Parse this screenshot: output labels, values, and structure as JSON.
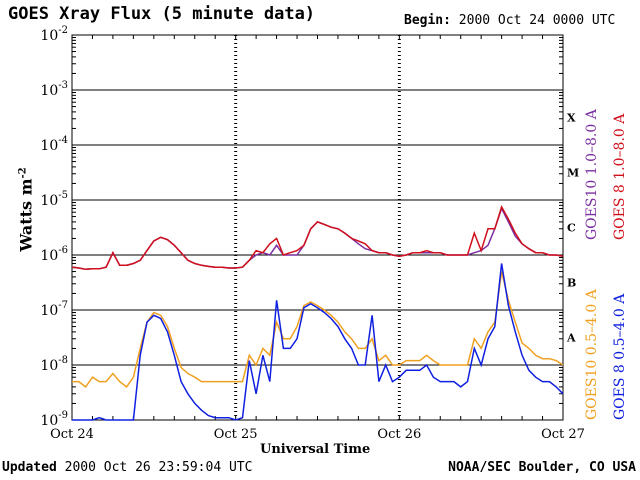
{
  "header": {
    "title": "GOES Xray Flux (5 minute data)",
    "begin_label": "Begin:",
    "begin_value": "2000 Oct 24 0000 UTC"
  },
  "footer": {
    "updated_label": "Updated",
    "updated_value": "2000 Oct 26 23:59:04 UTC",
    "credit": "NOAA/SEC Boulder, CO USA"
  },
  "chart_data": {
    "type": "line",
    "title": "GOES Xray Flux (5 minute data)",
    "xlabel": "Universal Time",
    "ylabel": "Watts m-2",
    "y_scale": "log",
    "ylim": [
      1e-09,
      0.01
    ],
    "xlim": [
      0,
      72
    ],
    "x_unit": "hours since 2000 Oct 24 00:00 UTC",
    "x_ticks": [
      {
        "value": 0,
        "label": "Oct 24"
      },
      {
        "value": 24,
        "label": "Oct 25"
      },
      {
        "value": 48,
        "label": "Oct 26"
      },
      {
        "value": 72,
        "label": "Oct 27"
      }
    ],
    "y_ticks": [
      {
        "exp": -9,
        "label": "10",
        "sup": "-9"
      },
      {
        "exp": -8,
        "label": "10",
        "sup": "-8"
      },
      {
        "exp": -7,
        "label": "10",
        "sup": "-7"
      },
      {
        "exp": -6,
        "label": "10",
        "sup": "-6"
      },
      {
        "exp": -5,
        "label": "10",
        "sup": "-5"
      },
      {
        "exp": -4,
        "label": "10",
        "sup": "-4"
      },
      {
        "exp": -3,
        "label": "10",
        "sup": "-3"
      },
      {
        "exp": -2,
        "label": "10",
        "sup": "-2"
      }
    ],
    "flare_classes": [
      {
        "label": "A",
        "exp": -7.5
      },
      {
        "label": "B",
        "exp": -6.5
      },
      {
        "label": "C",
        "exp": -5.5
      },
      {
        "label": "M",
        "exp": -4.5
      },
      {
        "label": "X",
        "exp": -3.5
      }
    ],
    "grid": "horizontal decades",
    "legend_placement": "right-vertical",
    "series": [
      {
        "name": "GOES10 1.0–8.0 A",
        "color": "#7b2fa0",
        "x": [
          0,
          1,
          2,
          3,
          4,
          5,
          6,
          7,
          8,
          9,
          10,
          11,
          12,
          13,
          14,
          15,
          16,
          17,
          18,
          19,
          20,
          21,
          22,
          23,
          24,
          25,
          26,
          27,
          28,
          29,
          30,
          31,
          32,
          33,
          34,
          35,
          36,
          37,
          38,
          39,
          40,
          41,
          42,
          43,
          44,
          45,
          46,
          47,
          48,
          49,
          50,
          51,
          52,
          53,
          54,
          55,
          56,
          57,
          58,
          59,
          60,
          61,
          62,
          63,
          64,
          65,
          66,
          67,
          68,
          69,
          70,
          71,
          72
        ],
        "y": [
          6e-07,
          5.8e-07,
          5.5e-07,
          5.6e-07,
          5.6e-07,
          6e-07,
          1.1e-06,
          6.5e-07,
          6.5e-07,
          7e-07,
          8e-07,
          1.2e-06,
          1.8e-06,
          2.1e-06,
          1.9e-06,
          1.5e-06,
          1.1e-06,
          8e-07,
          7e-07,
          6.5e-07,
          6.2e-07,
          6e-07,
          6e-07,
          5.8e-07,
          5.8e-07,
          6e-07,
          8e-07,
          1e-06,
          1.1e-06,
          1e-06,
          1.5e-06,
          1e-06,
          1e-06,
          1e-06,
          1.5e-06,
          3e-06,
          4e-06,
          3.6e-06,
          3.2e-06,
          3e-06,
          2.5e-06,
          2e-06,
          1.6e-06,
          1.3e-06,
          1.2e-06,
          1.1e-06,
          1.1e-06,
          1e-06,
          9.5e-07,
          1e-06,
          1.1e-06,
          1.1e-06,
          1.1e-06,
          1.1e-06,
          1.1e-06,
          1e-06,
          1e-06,
          1e-06,
          1e-06,
          1.1e-06,
          1.2e-06,
          1.5e-06,
          3e-06,
          7e-06,
          4e-06,
          2.2e-06,
          1.6e-06,
          1.3e-06,
          1.1e-06,
          1.1e-06,
          1e-06,
          1e-06,
          9.5e-07
        ]
      },
      {
        "name": "GOES 8 1.0–8.0 A",
        "color": "#d0101c",
        "x": [
          0,
          1,
          2,
          3,
          4,
          5,
          6,
          7,
          8,
          9,
          10,
          11,
          12,
          13,
          14,
          15,
          16,
          17,
          18,
          19,
          20,
          21,
          22,
          23,
          24,
          25,
          26,
          27,
          28,
          29,
          30,
          31,
          32,
          33,
          34,
          35,
          36,
          37,
          38,
          39,
          40,
          41,
          42,
          43,
          44,
          45,
          46,
          47,
          48,
          49,
          50,
          51,
          52,
          53,
          54,
          55,
          56,
          57,
          58,
          59,
          60,
          61,
          62,
          63,
          64,
          65,
          66,
          67,
          68,
          69,
          70,
          71,
          72
        ],
        "y": [
          6e-07,
          5.8e-07,
          5.5e-07,
          5.6e-07,
          5.6e-07,
          6e-07,
          1.1e-06,
          6.5e-07,
          6.5e-07,
          7e-07,
          8e-07,
          1.2e-06,
          1.8e-06,
          2.1e-06,
          1.9e-06,
          1.5e-06,
          1.1e-06,
          8e-07,
          7e-07,
          6.5e-07,
          6.2e-07,
          6e-07,
          6e-07,
          5.8e-07,
          5.8e-07,
          6e-07,
          8e-07,
          1.2e-06,
          1.1e-06,
          1.6e-06,
          2e-06,
          1e-06,
          1.1e-06,
          1.2e-06,
          1.5e-06,
          3e-06,
          4e-06,
          3.6e-06,
          3.2e-06,
          3e-06,
          2.5e-06,
          2e-06,
          1.8e-06,
          1.6e-06,
          1.2e-06,
          1.1e-06,
          1.1e-06,
          1e-06,
          9.5e-07,
          1e-06,
          1.1e-06,
          1.1e-06,
          1.2e-06,
          1.1e-06,
          1.1e-06,
          1e-06,
          1e-06,
          1e-06,
          1e-06,
          2.5e-06,
          1.2e-06,
          3e-06,
          3e-06,
          7.5e-06,
          4.5e-06,
          2.5e-06,
          1.6e-06,
          1.3e-06,
          1.1e-06,
          1.1e-06,
          1e-06,
          1e-06,
          9.5e-07
        ]
      },
      {
        "name": "GOES10 0.5–4.0 A",
        "color": "#f0a020",
        "x": [
          0,
          1,
          2,
          3,
          4,
          5,
          6,
          7,
          8,
          9,
          10,
          11,
          12,
          13,
          14,
          15,
          16,
          17,
          18,
          19,
          20,
          21,
          22,
          23,
          24,
          25,
          26,
          27,
          28,
          29,
          30,
          31,
          32,
          33,
          34,
          35,
          36,
          37,
          38,
          39,
          40,
          41,
          42,
          43,
          44,
          45,
          46,
          47,
          48,
          49,
          50,
          51,
          52,
          53,
          54,
          55,
          56,
          57,
          58,
          59,
          60,
          61,
          62,
          63,
          64,
          65,
          66,
          67,
          68,
          69,
          70,
          71,
          72
        ],
        "y": [
          5e-09,
          5e-09,
          4e-09,
          6e-09,
          5e-09,
          5e-09,
          7e-09,
          5e-09,
          4e-09,
          6e-09,
          2e-08,
          6e-08,
          9e-08,
          8e-08,
          5e-08,
          2e-08,
          9e-09,
          7e-09,
          6e-09,
          5e-09,
          5e-09,
          5e-09,
          5e-09,
          5e-09,
          5e-09,
          5e-09,
          1.5e-08,
          1e-08,
          2e-08,
          1.5e-08,
          6e-08,
          3e-08,
          3e-08,
          5e-08,
          1.2e-07,
          1.4e-07,
          1.2e-07,
          1e-07,
          8e-08,
          6e-08,
          4e-08,
          3e-08,
          2e-08,
          2e-08,
          3e-08,
          1.2e-08,
          1.5e-08,
          1e-08,
          1e-08,
          1.2e-08,
          1.2e-08,
          1.2e-08,
          1.5e-08,
          1.2e-08,
          1e-08,
          1e-08,
          1e-08,
          1e-08,
          1e-08,
          3e-08,
          2e-08,
          4e-08,
          6e-08,
          5e-07,
          1.5e-07,
          6e-08,
          2.5e-08,
          2e-08,
          1.5e-08,
          1.3e-08,
          1.3e-08,
          1.2e-08,
          1e-08
        ]
      },
      {
        "name": "GOES 8 0.5–4.0 A",
        "color": "#1020e0",
        "x": [
          0,
          1,
          2,
          3,
          4,
          5,
          6,
          7,
          8,
          9,
          10,
          11,
          12,
          13,
          14,
          15,
          16,
          17,
          18,
          19,
          20,
          21,
          22,
          23,
          24,
          25,
          26,
          27,
          28,
          29,
          30,
          31,
          32,
          33,
          34,
          35,
          36,
          37,
          38,
          39,
          40,
          41,
          42,
          43,
          44,
          45,
          46,
          47,
          48,
          49,
          50,
          51,
          52,
          53,
          54,
          55,
          56,
          57,
          58,
          59,
          60,
          61,
          62,
          63,
          64,
          65,
          66,
          67,
          68,
          69,
          70,
          71,
          72
        ],
        "y": [
          1e-09,
          1e-09,
          1e-09,
          1e-09,
          1.1e-09,
          1e-09,
          1e-09,
          1e-09,
          1e-09,
          1e-09,
          1.5e-08,
          6e-08,
          8e-08,
          7e-08,
          4e-08,
          1.5e-08,
          5e-09,
          3e-09,
          2e-09,
          1.5e-09,
          1.2e-09,
          1.1e-09,
          1.1e-09,
          1.1e-09,
          1e-09,
          1.1e-09,
          1.2e-08,
          3e-09,
          1.5e-08,
          5e-09,
          1.5e-07,
          2e-08,
          2e-08,
          3e-08,
          1.1e-07,
          1.3e-07,
          1.1e-07,
          9e-08,
          7e-08,
          5e-08,
          3e-08,
          2e-08,
          1e-08,
          1e-08,
          8e-08,
          5e-09,
          1e-08,
          5e-09,
          6e-09,
          8e-09,
          8e-09,
          8e-09,
          1e-08,
          6e-09,
          5e-09,
          5e-09,
          5e-09,
          4e-09,
          5e-09,
          2e-08,
          1e-08,
          3e-08,
          5e-08,
          7e-07,
          1.2e-07,
          4e-08,
          1.5e-08,
          8e-09,
          6e-09,
          5e-09,
          5e-09,
          4e-09,
          3e-09
        ]
      }
    ]
  }
}
